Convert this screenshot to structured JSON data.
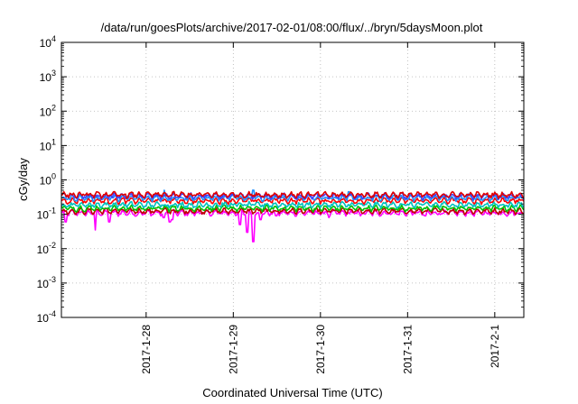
{
  "chart_data": {
    "type": "line",
    "title": "/data/run/goesPlots/archive/2017-02-01/08:00/flux/../bryn/5daysMoon.plot",
    "xlabel": "Coordinated Universal Time (UTC)",
    "ylabel": "cGy/day",
    "y_scale": "log",
    "ylim": [
      0.0001,
      10000
    ],
    "xlim": [
      "2017-01-27 00:40",
      "2017-02-01 08:00"
    ],
    "y_ticks": [
      {
        "base": "10",
        "exp": "-4"
      },
      {
        "base": "10",
        "exp": "-3"
      },
      {
        "base": "10",
        "exp": "-2"
      },
      {
        "base": "10",
        "exp": "-1"
      },
      {
        "base": "10",
        "exp": "0"
      },
      {
        "base": "10",
        "exp": "1"
      },
      {
        "base": "10",
        "exp": "2"
      },
      {
        "base": "10",
        "exp": "3"
      },
      {
        "base": "10",
        "exp": "4"
      }
    ],
    "x_ticks": [
      "2017-1-28",
      "2017-1-29",
      "2017-1-30",
      "2017-1-31",
      "2017-2-1"
    ],
    "grid": true,
    "sampling": "approx 20-minute samples over the plotted range",
    "series": [
      {
        "color": "#ff00ff",
        "base": 0.11,
        "spikes": [
          [
            0.05,
            0.06
          ],
          [
            0.39,
            0.035
          ],
          [
            0.55,
            0.06
          ],
          [
            0.86,
            0.09
          ],
          [
            1.17,
            0.08
          ],
          [
            1.24,
            0.06
          ],
          [
            1.27,
            0.07
          ],
          [
            2.05,
            0.05
          ],
          [
            2.13,
            0.03
          ],
          [
            2.2,
            0.016
          ],
          [
            2.28,
            0.07
          ],
          [
            2.47,
            0.09
          ],
          [
            3.07,
            0.08
          ],
          [
            3.43,
            0.09
          ],
          [
            4.17,
            0.09
          ]
        ]
      },
      {
        "color": "#c00000",
        "base": 0.125
      },
      {
        "color": "#00c000",
        "base": 0.15
      },
      {
        "color": "#00c0c0",
        "base": 0.19
      },
      {
        "color": "#ff0000",
        "base": 0.25
      },
      {
        "color": "#1e90ff",
        "base": 0.3,
        "spikes": [
          [
            1.18,
            0.5
          ],
          [
            2.2,
            0.5
          ],
          [
            3.3,
            0.45
          ]
        ]
      },
      {
        "color": "#4040ff",
        "base": 0.34
      },
      {
        "color": "#e00000",
        "base": 0.37
      }
    ]
  }
}
